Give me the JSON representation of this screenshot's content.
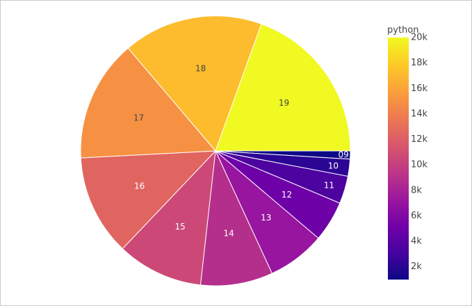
{
  "chart_data": {
    "type": "pie",
    "colorbar": {
      "title": "python",
      "min": 1000,
      "max": 20000,
      "ticks": [
        {
          "value": 2000,
          "label": "2k"
        },
        {
          "value": 4000,
          "label": "4k"
        },
        {
          "value": 6000,
          "label": "6k"
        },
        {
          "value": 8000,
          "label": "8k"
        },
        {
          "value": 10000,
          "label": "10k"
        },
        {
          "value": 12000,
          "label": "12k"
        },
        {
          "value": 14000,
          "label": "14k"
        },
        {
          "value": 16000,
          "label": "16k"
        },
        {
          "value": 18000,
          "label": "18k"
        },
        {
          "value": 20000,
          "label": "20k"
        }
      ],
      "colorscale": [
        "#0d0887",
        "#46039f",
        "#7201a8",
        "#9c179e",
        "#bd3786",
        "#d8576b",
        "#ed7953",
        "#fb9f3a",
        "#fdca26",
        "#f0f921"
      ]
    },
    "slices": [
      {
        "label": "09",
        "value": 1000
      },
      {
        "label": "10",
        "value": 2100
      },
      {
        "label": "11",
        "value": 3400
      },
      {
        "label": "12",
        "value": 5000
      },
      {
        "label": "13",
        "value": 7100
      },
      {
        "label": "14",
        "value": 8900
      },
      {
        "label": "15",
        "value": 10600
      },
      {
        "label": "16",
        "value": 12400
      },
      {
        "label": "17",
        "value": 15000
      },
      {
        "label": "18",
        "value": 17200
      },
      {
        "label": "19",
        "value": 20000
      }
    ]
  }
}
